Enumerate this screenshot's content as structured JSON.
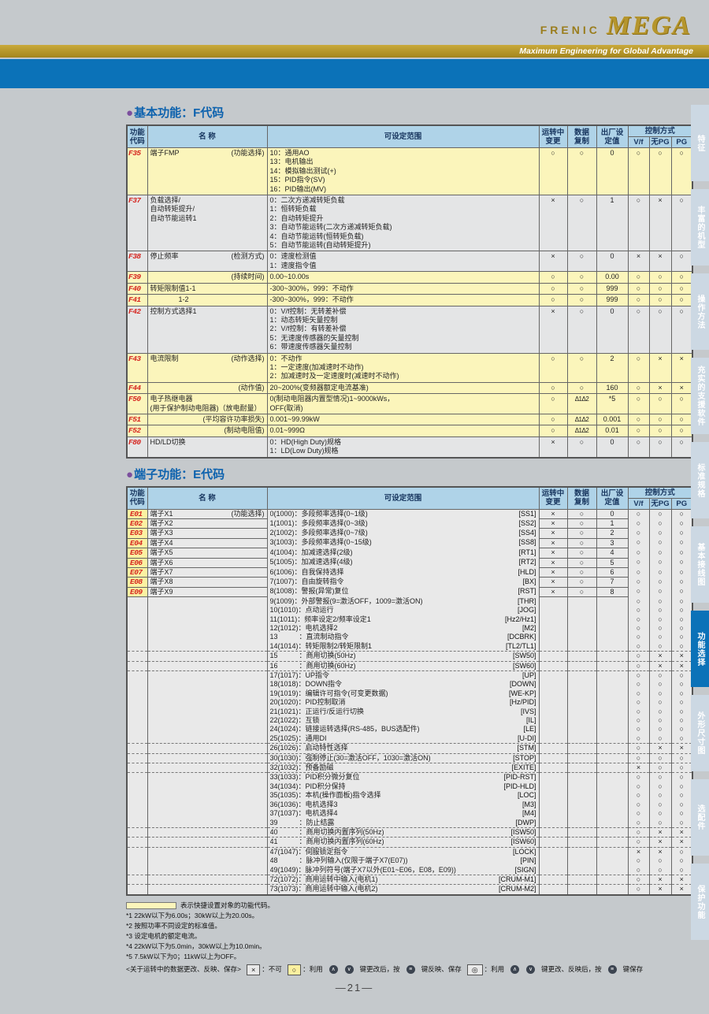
{
  "header": {
    "brand_small": "FRENIC",
    "brand_big": "MEGA",
    "tagline": "Maximum Engineering for Global Advantage"
  },
  "sections": {
    "bullet": "●",
    "f": "基本功能：F代码",
    "e": "端子功能：E代码"
  },
  "cols": {
    "code": "功能\n代码",
    "name": "名 称",
    "range": "可设定范围",
    "chg": "运转中\n变更",
    "cpy": "数据\n复制",
    "def": "出厂设\n定值",
    "ctrl": "控制方式",
    "vf": "V/f",
    "nopg": "无PG",
    "pg": "PG"
  },
  "f_rows": [
    {
      "code": "F35",
      "name": "端子FMP",
      "sub": "(功能选择)",
      "range": "10：通用AO\n13：电机输出\n14：模拟输出测试(+)\n15：PID指令(SV)\n16：PID输出(MV)",
      "chg": "○",
      "cpy": "○",
      "def": "0",
      "vf": "○",
      "nopg": "○",
      "pg": "○",
      "hl": "y"
    },
    {
      "code": "F37",
      "name": "负载选择/\n自动转矩提升/\n自动节能运转1",
      "sub": "",
      "range": "0：二次方递减转矩负载\n1：恒转矩负载\n2：自动转矩提升\n3：自动节能运转(二次方递减转矩负载)\n4：自动节能运转(恒转矩负载)\n5：自动节能运转(自动转矩提升)",
      "chg": "×",
      "cpy": "○",
      "def": "1",
      "vf": "○",
      "nopg": "×",
      "pg": "○",
      "hl": "g"
    },
    {
      "code": "F38",
      "name": "停止频率",
      "sub": "(检测方式)",
      "range": "0：速度检测值\n1：速度指令值",
      "chg": "×",
      "cpy": "○",
      "def": "0",
      "vf": "×",
      "nopg": "×",
      "pg": "○",
      "hl": "g"
    },
    {
      "code": "F39",
      "name": "",
      "sub": "(持续时间)",
      "range": "0.00~10.00s",
      "chg": "○",
      "cpy": "○",
      "def": "0.00",
      "vf": "○",
      "nopg": "○",
      "pg": "○",
      "hl": "y"
    },
    {
      "code": "F40",
      "name": "转矩限制值1-1",
      "sub": "",
      "range": "-300~300%，999：不动作",
      "chg": "○",
      "cpy": "○",
      "def": "999",
      "vf": "○",
      "nopg": "○",
      "pg": "○",
      "hl": "y"
    },
    {
      "code": "F41",
      "name": "　　　　1-2",
      "sub": "",
      "range": "-300~300%，999：不动作",
      "chg": "○",
      "cpy": "○",
      "def": "999",
      "vf": "○",
      "nopg": "○",
      "pg": "○",
      "hl": "y"
    },
    {
      "code": "F42",
      "name": "控制方式选择1",
      "sub": "",
      "range": "0：V/f控制：无转差补偿\n1：动态转矩矢量控制\n2：V/f控制：有转差补偿\n5：无速度传感器的矢量控制\n6：带速度传感器矢量控制",
      "chg": "×",
      "cpy": "○",
      "def": "0",
      "vf": "○",
      "nopg": "○",
      "pg": "○",
      "hl": "g"
    },
    {
      "code": "F43",
      "name": "电流限制",
      "sub": "(动作选择)",
      "range": "0：不动作\n1：一定速度(加减速时不动作)\n2：加减速时及一定速度时(减速时不动作)",
      "chg": "○",
      "cpy": "○",
      "def": "2",
      "vf": "○",
      "nopg": "×",
      "pg": "×",
      "hl": "y"
    },
    {
      "code": "F44",
      "name": "",
      "sub": "(动作值)",
      "range": "20~200%(变频器额定电流基准)",
      "chg": "○",
      "cpy": "○",
      "def": "160",
      "vf": "○",
      "nopg": "×",
      "pg": "×",
      "hl": "y"
    },
    {
      "code": "F50",
      "name": "电子热继电器\n(用于保护制动电阻器)（放电耐量）",
      "sub": "",
      "range": "0(制动电阻器内置型情况)1~9000kWs，\nOFF(取消)",
      "chg": "○",
      "cpy": "Δ1Δ2",
      "def": "*5",
      "vf": "○",
      "nopg": "○",
      "pg": "○",
      "hl": "y"
    },
    {
      "code": "F51",
      "name": "",
      "sub": "(平均容许功率损失)",
      "range": "0.001~99.99kW",
      "chg": "○",
      "cpy": "Δ1Δ2",
      "def": "0.001",
      "vf": "○",
      "nopg": "○",
      "pg": "○",
      "hl": "y"
    },
    {
      "code": "F52",
      "name": "",
      "sub": "(制动电阻值)",
      "range": "0.01~999Ω",
      "chg": "○",
      "cpy": "Δ1Δ2",
      "def": "0.01",
      "vf": "○",
      "nopg": "○",
      "pg": "○",
      "hl": "y"
    },
    {
      "code": "F80",
      "name": "HD/LD切换",
      "sub": "",
      "range": "0：HD(High Duty)规格\n1：LD(Low Duty)规格",
      "chg": "×",
      "cpy": "○",
      "def": "0",
      "vf": "○",
      "nopg": "○",
      "pg": "○",
      "hl": "g"
    }
  ],
  "e_terminals": [
    {
      "code": "E01",
      "name": "端子X1",
      "sub": "(功能选择)",
      "chg": "×",
      "cpy": "○",
      "def": "0"
    },
    {
      "code": "E02",
      "name": "端子X2",
      "sub": "",
      "chg": "×",
      "cpy": "○",
      "def": "1"
    },
    {
      "code": "E03",
      "name": "端子X3",
      "sub": "",
      "chg": "×",
      "cpy": "○",
      "def": "2"
    },
    {
      "code": "E04",
      "name": "端子X4",
      "sub": "",
      "chg": "×",
      "cpy": "○",
      "def": "3"
    },
    {
      "code": "E05",
      "name": "端子X5",
      "sub": "",
      "chg": "×",
      "cpy": "○",
      "def": "4"
    },
    {
      "code": "E06",
      "name": "端子X6",
      "sub": "",
      "chg": "×",
      "cpy": "○",
      "def": "5"
    },
    {
      "code": "E07",
      "name": "端子X7",
      "sub": "",
      "chg": "×",
      "cpy": "○",
      "def": "6"
    },
    {
      "code": "E08",
      "name": "端子X8",
      "sub": "",
      "chg": "×",
      "cpy": "○",
      "def": "7"
    },
    {
      "code": "E09",
      "name": "端子X9",
      "sub": "",
      "chg": "×",
      "cpy": "○",
      "def": "8"
    }
  ],
  "e_options": [
    {
      "text": "0(1000)：多段频率选择(0~1级)",
      "tag": "[SS1]",
      "vf": "○",
      "nopg": "○",
      "pg": "○"
    },
    {
      "text": "1(1001)：多段频率选择(0~3级)",
      "tag": "[SS2]",
      "vf": "○",
      "nopg": "○",
      "pg": "○"
    },
    {
      "text": "2(1002)：多段频率选择(0~7级)",
      "tag": "[SS4]",
      "vf": "○",
      "nopg": "○",
      "pg": "○"
    },
    {
      "text": "3(1003)：多段频率选择(0~15级)",
      "tag": "[SS8]",
      "vf": "○",
      "nopg": "○",
      "pg": "○"
    },
    {
      "text": "4(1004)：加减速选择(2级)",
      "tag": "[RT1]",
      "vf": "○",
      "nopg": "○",
      "pg": "○"
    },
    {
      "text": "5(1005)：加减速选择(4级)",
      "tag": "[RT2]",
      "vf": "○",
      "nopg": "○",
      "pg": "○"
    },
    {
      "text": "6(1006)：自我保持选择",
      "tag": "[HLD]",
      "vf": "○",
      "nopg": "○",
      "pg": "○"
    },
    {
      "text": "7(1007)：自由旋转指令",
      "tag": "[BX]",
      "vf": "○",
      "nopg": "○",
      "pg": "○"
    },
    {
      "text": "8(1008)：警报(异常)复位",
      "tag": "[RST]",
      "vf": "○",
      "nopg": "○",
      "pg": "○"
    },
    {
      "text": "9(1009)：外部警报(9=激活OFF，1009=激活ON)",
      "tag": "[THR]",
      "vf": "○",
      "nopg": "○",
      "pg": "○"
    },
    {
      "text": "10(1010)：点动运行",
      "tag": "[JOG]",
      "vf": "○",
      "nopg": "○",
      "pg": "○"
    },
    {
      "text": "11(1011)：频率设定2/频率设定1",
      "tag": "[Hz2/Hz1]",
      "vf": "○",
      "nopg": "○",
      "pg": "○"
    },
    {
      "text": "12(1012)：电机选择2",
      "tag": "[M2]",
      "vf": "○",
      "nopg": "○",
      "pg": "○"
    },
    {
      "text": "13　　　：直流制动指令",
      "tag": "[DCBRK]",
      "vf": "○",
      "nopg": "○",
      "pg": "○"
    },
    {
      "text": "14(1014)：转矩限制2/转矩限制1",
      "tag": "[TL2/TL1]",
      "vf": "○",
      "nopg": "○",
      "pg": "○"
    },
    {
      "text": "15　　　：商用切换(50Hz)",
      "tag": "[SW50]",
      "vf": "○",
      "nopg": "×",
      "pg": "×",
      "dash": true
    },
    {
      "text": "16　　　：商用切换(60Hz)",
      "tag": "[SW60]",
      "vf": "○",
      "nopg": "×",
      "pg": "×",
      "dash": true
    },
    {
      "text": "17(1017)：UP指令",
      "tag": "[UP]",
      "vf": "○",
      "nopg": "○",
      "pg": "○",
      "dash": true
    },
    {
      "text": "18(1018)：DOWN指令",
      "tag": "[DOWN]",
      "vf": "○",
      "nopg": "○",
      "pg": "○"
    },
    {
      "text": "19(1019)：编辑许可指令(可变更数据)",
      "tag": "[WE-KP]",
      "vf": "○",
      "nopg": "○",
      "pg": "○"
    },
    {
      "text": "20(1020)：PID控制取消",
      "tag": "[Hz/PID]",
      "vf": "○",
      "nopg": "○",
      "pg": "○"
    },
    {
      "text": "21(1021)：正运行/反运行切换",
      "tag": "[IVS]",
      "vf": "○",
      "nopg": "○",
      "pg": "○"
    },
    {
      "text": "22(1022)：互锁",
      "tag": "[IL]",
      "vf": "○",
      "nopg": "○",
      "pg": "○"
    },
    {
      "text": "24(1024)：链接运转选择(RS-485，BUS选配件)",
      "tag": "[LE]",
      "vf": "○",
      "nopg": "○",
      "pg": "○"
    },
    {
      "text": "25(1025)：通用DI",
      "tag": "[U-DI]",
      "vf": "○",
      "nopg": "○",
      "pg": "○"
    },
    {
      "text": "26(1026)：启动特性选择",
      "tag": "[STM]",
      "vf": "○",
      "nopg": "×",
      "pg": "×",
      "dash": true
    },
    {
      "text": "30(1030)：强制停止(30=激活OFF，1030=激活ON)",
      "tag": "[STOP]",
      "vf": "○",
      "nopg": "○",
      "pg": "○",
      "dash": true
    },
    {
      "text": "32(1032)：预备励磁",
      "tag": "[EXITE]",
      "vf": "×",
      "nopg": "○",
      "pg": "○",
      "dash": true
    },
    {
      "text": "33(1033)：PID积分微分复位",
      "tag": "[PID-RST]",
      "vf": "○",
      "nopg": "○",
      "pg": "○",
      "dash": true
    },
    {
      "text": "34(1034)：PID积分保持",
      "tag": "[PID-HLD]",
      "vf": "○",
      "nopg": "○",
      "pg": "○"
    },
    {
      "text": "35(1035)：本机(操作面板)指令选择",
      "tag": "[LOC]",
      "vf": "○",
      "nopg": "○",
      "pg": "○"
    },
    {
      "text": "36(1036)：电机选择3",
      "tag": "[M3]",
      "vf": "○",
      "nopg": "○",
      "pg": "○"
    },
    {
      "text": "37(1037)：电机选择4",
      "tag": "[M4]",
      "vf": "○",
      "nopg": "○",
      "pg": "○"
    },
    {
      "text": "39　　　：防止结露",
      "tag": "[DWP]",
      "vf": "○",
      "nopg": "○",
      "pg": "○"
    },
    {
      "text": "40　　　：商用切换内置序列(50Hz)",
      "tag": "[ISW50]",
      "vf": "○",
      "nopg": "×",
      "pg": "×",
      "dash": true
    },
    {
      "text": "41　　　：商用切换内置序列(60Hz)",
      "tag": "[ISW60]",
      "vf": "○",
      "nopg": "×",
      "pg": "×",
      "dash": true
    },
    {
      "text": "47(1047)：伺服锁定指令",
      "tag": "[LOCK]",
      "vf": "×",
      "nopg": "×",
      "pg": "○",
      "dash": true
    },
    {
      "text": "48　　　：脉冲列输入(仅限于端子X7(E07))",
      "tag": "[PIN]",
      "vf": "○",
      "nopg": "○",
      "pg": "○"
    },
    {
      "text": "49(1049)：脉冲列符号(端子X7以外(E01~E06，E08，E09))",
      "tag": "[SIGN]",
      "vf": "○",
      "nopg": "○",
      "pg": "○"
    },
    {
      "text": "72(1072)：商用运转中输入(电机1)",
      "tag": "[CRUM-M1]",
      "vf": "○",
      "nopg": "×",
      "pg": "×",
      "dash": true
    },
    {
      "text": "73(1073)：商用运转中输入(电机2)",
      "tag": "[CRUM-M2]",
      "vf": "○",
      "nopg": "×",
      "pg": "×",
      "dash": true
    }
  ],
  "footnotes": {
    "swatch_label": "表示快捷设置对象的功能代码。",
    "lines": [
      "*1 22kW以下为6.00s；30kW以上为20.00s。",
      "*2 按照功率不同设定的标准值。",
      "*3 设定电机的额定电流。",
      "*4 22kW以下为5.0min，30kW以上为10.0min。",
      "*5 7.5kW以下为0；11kW以上为OFF。"
    ]
  },
  "legend": {
    "note": "<关于运转中的数据更改、反映、保存>",
    "na_sym": "×",
    "na_txt": "：不可",
    "o_sym": "○",
    "o_pre": "：利用",
    "o_mid": "键更改后，按",
    "o_post": "键反映、保存",
    "d_sym": "◎",
    "d_pre": "：利用",
    "d_mid": "键更改、反映后，按",
    "d_post": "键保存"
  },
  "sidebar": {
    "active_index": 6,
    "tabs": [
      "特征",
      "丰富的机型",
      "操作方法",
      "充实的支援软件",
      "标准规格",
      "基本接线图",
      "功能选择",
      "外形尺寸图",
      "选配件",
      "保护功能"
    ]
  },
  "page_number": "—21—"
}
